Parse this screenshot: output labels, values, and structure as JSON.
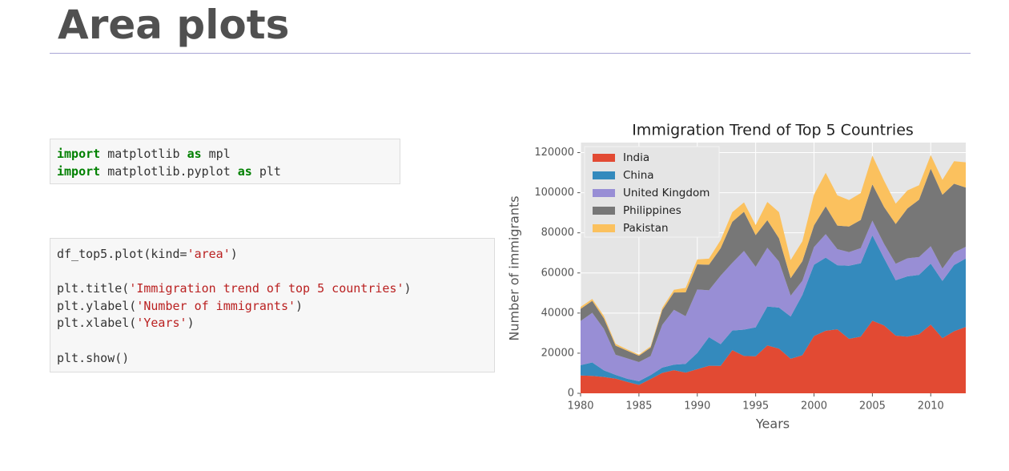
{
  "title": "Area plots",
  "code_blocks": [
    {
      "lines": [
        [
          {
            "text": "import",
            "color": "#008000",
            "bold": true
          },
          {
            "text": " matplotlib ",
            "color": "#333333"
          },
          {
            "text": "as",
            "color": "#008000",
            "bold": true
          },
          {
            "text": " mpl",
            "color": "#333333"
          }
        ],
        [
          {
            "text": "import",
            "color": "#008000",
            "bold": true
          },
          {
            "text": " matplotlib.pyplot ",
            "color": "#333333"
          },
          {
            "text": "as",
            "color": "#008000",
            "bold": true
          },
          {
            "text": " plt",
            "color": "#333333"
          }
        ]
      ]
    },
    {
      "lines": [
        [
          {
            "text": "df_top5.plot(kind=",
            "color": "#333333"
          },
          {
            "text": "'area'",
            "color": "#ba2121"
          },
          {
            "text": ")",
            "color": "#333333"
          }
        ],
        [],
        [
          {
            "text": "plt.title(",
            "color": "#333333"
          },
          {
            "text": "'Immigration trend of top 5 countries'",
            "color": "#ba2121"
          },
          {
            "text": ")",
            "color": "#333333"
          }
        ],
        [
          {
            "text": "plt.ylabel(",
            "color": "#333333"
          },
          {
            "text": "'Number of immigrants'",
            "color": "#ba2121"
          },
          {
            "text": ")",
            "color": "#333333"
          }
        ],
        [
          {
            "text": "plt.xlabel(",
            "color": "#333333"
          },
          {
            "text": "'Years'",
            "color": "#ba2121"
          },
          {
            "text": ")",
            "color": "#333333"
          }
        ],
        [],
        [
          {
            "text": "plt.show()",
            "color": "#333333"
          }
        ]
      ]
    }
  ],
  "chart_data": {
    "type": "stacked_area",
    "title": "Immigration Trend of Top 5 Countries",
    "x_label": "Years",
    "y_label": "Number of immigrants",
    "x": [
      1980,
      1981,
      1982,
      1983,
      1984,
      1985,
      1986,
      1987,
      1988,
      1989,
      1990,
      1991,
      1992,
      1993,
      1994,
      1995,
      1996,
      1997,
      1998,
      1999,
      2000,
      2001,
      2002,
      2003,
      2004,
      2005,
      2006,
      2007,
      2008,
      2009,
      2010,
      2011,
      2012,
      2013
    ],
    "series": [
      {
        "name": "India",
        "color": "#E24A33",
        "values": [
          8880,
          8670,
          8147,
          7338,
          5704,
          4211,
          7150,
          10189,
          11522,
          10343,
          12041,
          13734,
          13673,
          21496,
          18620,
          18489,
          23859,
          22268,
          17241,
          18974,
          28572,
          31223,
          31889,
          27155,
          28235,
          36210,
          33848,
          28742,
          28261,
          29456,
          34235,
          27509,
          30933,
          33087
        ]
      },
      {
        "name": "China",
        "color": "#348ABD",
        "values": [
          5123,
          6682,
          3308,
          1863,
          1527,
          1816,
          1960,
          2643,
          2758,
          4323,
          8076,
          14255,
          10846,
          9817,
          13128,
          14398,
          19415,
          20475,
          21049,
          30069,
          35529,
          36434,
          31961,
          36439,
          36619,
          42584,
          33518,
          27642,
          30037,
          29622,
          30391,
          28502,
          33024,
          34129
        ]
      },
      {
        "name": "United Kingdom",
        "color": "#988ED5",
        "values": [
          22045,
          24796,
          20620,
          10015,
          10170,
          9564,
          9470,
          21337,
          27359,
          23795,
          31668,
          23380,
          34123,
          33720,
          39231,
          30145,
          29322,
          22965,
          10367,
          7045,
          8840,
          11728,
          8046,
          6797,
          7533,
          7258,
          7140,
          8216,
          8979,
          8876,
          8724,
          6204,
          6195,
          5827
        ]
      },
      {
        "name": "Philippines",
        "color": "#777777",
        "values": [
          6051,
          5921,
          5249,
          4562,
          3801,
          3150,
          4166,
          7360,
          8639,
          11865,
          12509,
          12718,
          13670,
          20479,
          19532,
          15864,
          13692,
          11549,
          8735,
          9734,
          10763,
          13836,
          11707,
          12758,
          14004,
          18139,
          18400,
          19837,
          24887,
          28573,
          38617,
          36765,
          34315,
          29544
        ]
      },
      {
        "name": "Pakistan",
        "color": "#FBC15E",
        "values": [
          978,
          972,
          1201,
          900,
          668,
          514,
          691,
          1072,
          1334,
          2261,
          2470,
          3079,
          4071,
          4777,
          4666,
          4994,
          9125,
          13073,
          9068,
          9979,
          15400,
          16708,
          15110,
          13205,
          13399,
          14314,
          13127,
          10124,
          8994,
          7217,
          6811,
          7468,
          11227,
          12603
        ]
      }
    ],
    "xlim": [
      1980,
      2013
    ],
    "xticks": [
      1980,
      1985,
      1990,
      1995,
      2000,
      2005,
      2010
    ],
    "ylim": [
      0,
      125000
    ],
    "yticks": [
      0,
      20000,
      40000,
      60000,
      80000,
      100000,
      120000
    ],
    "grid": true,
    "legend": "upper-left"
  }
}
